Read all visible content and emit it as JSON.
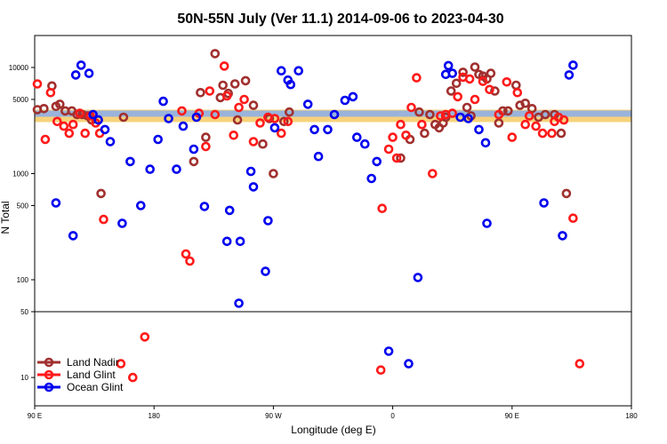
{
  "chart_data": {
    "type": "scatter",
    "title": "50N-55N July (Ver 11.1)   2014-09-06 to 2023-04-30",
    "xlabel": "Longitude (deg E)",
    "ylabel": "N Total",
    "x_ticks": [
      "90 E",
      "180",
      "90 W",
      "0",
      "90 E",
      "180"
    ],
    "x_tick_lons": [
      90,
      180,
      270,
      360,
      450,
      540
    ],
    "xlim": [
      90,
      540
    ],
    "y_scale": "log",
    "y_ticks_upper": [
      "10000",
      "5000",
      "1000",
      "500",
      "100",
      "50"
    ],
    "y_ticks_lower": [
      "50",
      "10"
    ],
    "ylim_upper": [
      50,
      20000
    ],
    "ylim_lower": [
      5,
      50
    ],
    "band": {
      "y_center": 3500,
      "colors": {
        "sand": "#f7d27a",
        "ocean": "#9ab3db"
      }
    },
    "legend": {
      "position": "bottom-left"
    },
    "series": [
      {
        "name": "Land Nadir",
        "color": "#a0302e",
        "points": [
          [
            92,
            4000
          ],
          [
            97,
            4100
          ],
          [
            103,
            6700
          ],
          [
            106,
            4300
          ],
          [
            109,
            4500
          ],
          [
            113,
            3900
          ],
          [
            118,
            3900
          ],
          [
            122,
            3600
          ],
          [
            126,
            3600
          ],
          [
            130,
            3500
          ],
          [
            133,
            3200
          ],
          [
            140,
            650
          ],
          [
            157,
            3400
          ],
          [
            210,
            1300
          ],
          [
            215,
            5800
          ],
          [
            219,
            2200
          ],
          [
            226,
            13500
          ],
          [
            230,
            5200
          ],
          [
            232,
            6800
          ],
          [
            236,
            5700
          ],
          [
            241,
            7000
          ],
          [
            243,
            3200
          ],
          [
            249,
            7500
          ],
          [
            255,
            4400
          ],
          [
            262,
            1900
          ],
          [
            267,
            3300
          ],
          [
            270,
            1000
          ],
          [
            278,
            3100
          ],
          [
            282,
            3800
          ],
          [
            366,
            1400
          ],
          [
            373,
            2100
          ],
          [
            380,
            3800
          ],
          [
            384,
            2400
          ],
          [
            388,
            3600
          ],
          [
            392,
            2900
          ],
          [
            395,
            2700
          ],
          [
            398,
            3000
          ],
          [
            400,
            3400
          ],
          [
            404,
            6000
          ],
          [
            408,
            7100
          ],
          [
            413,
            9000
          ],
          [
            416,
            4200
          ],
          [
            419,
            3500
          ],
          [
            422,
            10100
          ],
          [
            425,
            8600
          ],
          [
            428,
            8300
          ],
          [
            431,
            7800
          ],
          [
            434,
            8800
          ],
          [
            437,
            6000
          ],
          [
            440,
            3000
          ],
          [
            443,
            3900
          ],
          [
            447,
            3900
          ],
          [
            453,
            6800
          ],
          [
            456,
            4400
          ],
          [
            460,
            4600
          ],
          [
            465,
            4100
          ],
          [
            470,
            3400
          ],
          [
            475,
            3600
          ],
          [
            482,
            3600
          ],
          [
            487,
            2400
          ],
          [
            491,
            650
          ]
        ]
      },
      {
        "name": "Land Glint",
        "color": "#ff1a1a",
        "points": [
          [
            92,
            7000
          ],
          [
            98,
            2100
          ],
          [
            102,
            5800
          ],
          [
            107,
            3100
          ],
          [
            112,
            2800
          ],
          [
            116,
            2400
          ],
          [
            119,
            2900
          ],
          [
            124,
            3700
          ],
          [
            128,
            2400
          ],
          [
            132,
            3500
          ],
          [
            136,
            3000
          ],
          [
            139,
            2400
          ],
          [
            142,
            370
          ],
          [
            155,
            14
          ],
          [
            164,
            10
          ],
          [
            173,
            27
          ],
          [
            201,
            3900
          ],
          [
            204,
            175
          ],
          [
            207,
            150
          ],
          [
            214,
            3700
          ],
          [
            219,
            1800
          ],
          [
            222,
            6000
          ],
          [
            226,
            3600
          ],
          [
            233,
            10300
          ],
          [
            235,
            5400
          ],
          [
            240,
            2300
          ],
          [
            244,
            4200
          ],
          [
            248,
            5000
          ],
          [
            255,
            2000
          ],
          [
            260,
            3000
          ],
          [
            266,
            3400
          ],
          [
            271,
            3300
          ],
          [
            276,
            2400
          ],
          [
            281,
            3100
          ],
          [
            351,
            12
          ],
          [
            352,
            470
          ],
          [
            357,
            1700
          ],
          [
            360,
            2200
          ],
          [
            363,
            1400
          ],
          [
            366,
            2900
          ],
          [
            370,
            2300
          ],
          [
            374,
            4200
          ],
          [
            378,
            8000
          ],
          [
            382,
            2900
          ],
          [
            390,
            1000
          ],
          [
            396,
            3500
          ],
          [
            400,
            3600
          ],
          [
            405,
            3700
          ],
          [
            409,
            5300
          ],
          [
            413,
            8100
          ],
          [
            418,
            7800
          ],
          [
            422,
            5000
          ],
          [
            428,
            7400
          ],
          [
            433,
            6200
          ],
          [
            440,
            3600
          ],
          [
            446,
            7300
          ],
          [
            450,
            2200
          ],
          [
            454,
            5800
          ],
          [
            460,
            2900
          ],
          [
            463,
            3500
          ],
          [
            468,
            2800
          ],
          [
            473,
            2400
          ],
          [
            480,
            2400
          ],
          [
            482,
            3100
          ],
          [
            485,
            3400
          ],
          [
            489,
            3200
          ],
          [
            496,
            380
          ],
          [
            501,
            14
          ]
        ]
      },
      {
        "name": "Ocean Glint",
        "color": "#0000ee",
        "points": [
          [
            106,
            530
          ],
          [
            119,
            260
          ],
          [
            121,
            8500
          ],
          [
            125,
            10500
          ],
          [
            131,
            8800
          ],
          [
            134,
            3600
          ],
          [
            138,
            3200
          ],
          [
            143,
            2600
          ],
          [
            147,
            2000
          ],
          [
            156,
            340
          ],
          [
            162,
            1300
          ],
          [
            170,
            500
          ],
          [
            177,
            1100
          ],
          [
            183,
            2100
          ],
          [
            187,
            4800
          ],
          [
            191,
            3300
          ],
          [
            197,
            1100
          ],
          [
            202,
            2800
          ],
          [
            210,
            1700
          ],
          [
            212,
            3400
          ],
          [
            218,
            490
          ],
          [
            235,
            230
          ],
          [
            237,
            450
          ],
          [
            244,
            60
          ],
          [
            245,
            230
          ],
          [
            253,
            1050
          ],
          [
            255,
            750
          ],
          [
            264,
            120
          ],
          [
            266,
            360
          ],
          [
            271,
            2700
          ],
          [
            276,
            9300
          ],
          [
            281,
            7600
          ],
          [
            283,
            6900
          ],
          [
            289,
            9300
          ],
          [
            296,
            4500
          ],
          [
            301,
            2600
          ],
          [
            304,
            1450
          ],
          [
            311,
            2600
          ],
          [
            316,
            3600
          ],
          [
            324,
            4900
          ],
          [
            330,
            5300
          ],
          [
            333,
            2200
          ],
          [
            339,
            1900
          ],
          [
            344,
            900
          ],
          [
            348,
            1300
          ],
          [
            357,
            19
          ],
          [
            372,
            14
          ],
          [
            379,
            105
          ],
          [
            400,
            8600
          ],
          [
            402,
            10400
          ],
          [
            405,
            8800
          ],
          [
            411,
            3400
          ],
          [
            417,
            3300
          ],
          [
            425,
            2600
          ],
          [
            430,
            1950
          ],
          [
            431,
            340
          ],
          [
            474,
            530
          ],
          [
            488,
            260
          ],
          [
            493,
            8500
          ],
          [
            496,
            10500
          ]
        ]
      }
    ]
  }
}
